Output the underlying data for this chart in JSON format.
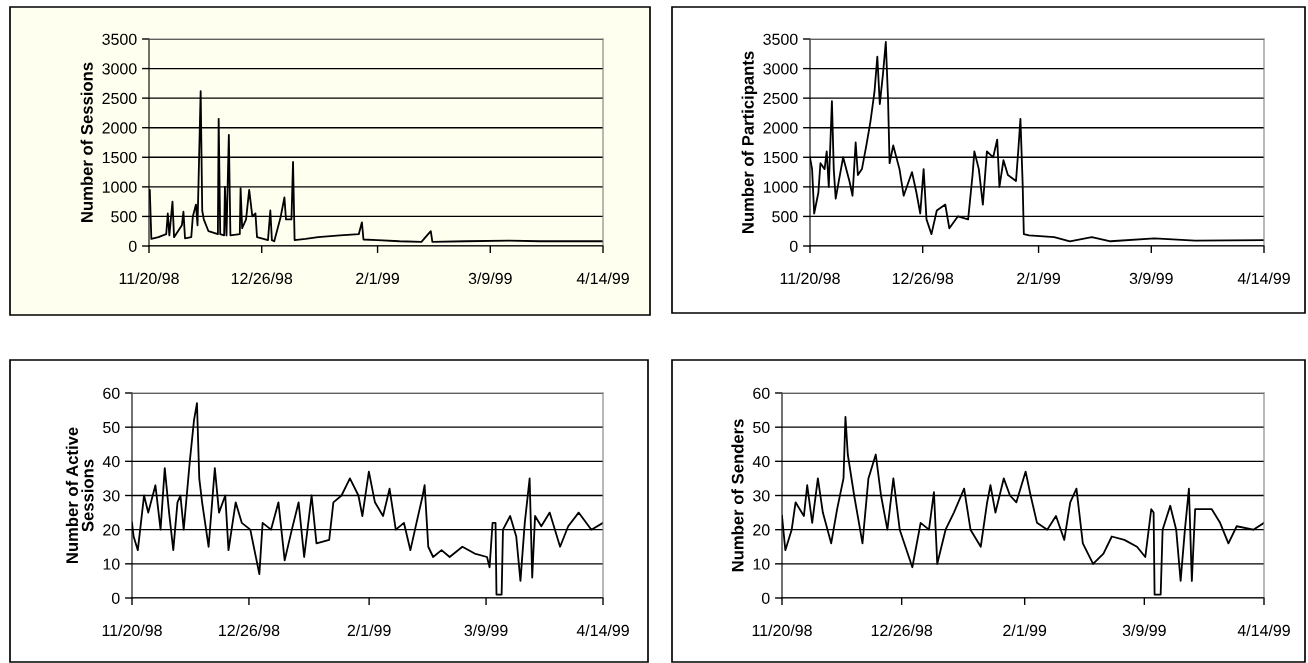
{
  "chart_data": [
    {
      "type": "line",
      "ylabel": "Number of Sessions",
      "grid": "y",
      "marker": "none",
      "line_style": "solid",
      "xlim": [
        "1998-11-20",
        "1999-04-14"
      ],
      "xticks": [
        {
          "value": "1998-11-20",
          "label": "11/20/98"
        },
        {
          "value": "1998-12-26",
          "label": "12/26/98"
        },
        {
          "value": "1999-02-01",
          "label": "2/1/99"
        },
        {
          "value": "1999-03-09",
          "label": "3/9/99"
        },
        {
          "value": "1999-04-14",
          "label": "4/14/99"
        }
      ],
      "ylim": [
        0,
        3500
      ],
      "yticks": [
        0,
        500,
        1000,
        1500,
        2000,
        2500,
        3000,
        3500
      ],
      "series": [
        {
          "color": "#000000",
          "x": [
            "1998-11-20T00:00",
            "1998-11-20T06:00",
            "1998-11-20T18:00",
            "1998-11-23",
            "1998-11-25T12:00",
            "1998-11-26",
            "1998-11-26T12:00",
            "1998-11-27T12:00",
            "1998-11-28",
            "1998-11-30T12:00",
            "1998-12-01",
            "1998-12-01T12:00",
            "1998-12-03T12:00",
            "1998-12-04",
            "1998-12-05",
            "1998-12-05T12:00",
            "1998-12-06T12:00",
            "1998-12-07",
            "1998-12-07T12:00",
            "1998-12-09",
            "1998-12-12",
            "1998-12-12T06:00",
            "1998-12-12T18:00",
            "1998-12-14",
            "1998-12-14T06:00",
            "1998-12-14T18:00",
            "1998-12-15T12:00",
            "1998-12-16",
            "1998-12-19",
            "1998-12-19T06:00",
            "1998-12-19T18:00",
            "1998-12-21",
            "1998-12-22",
            "1998-12-23",
            "1998-12-24",
            "1998-12-24T12:00",
            "1998-12-28",
            "1998-12-28T18:00",
            "1998-12-29T06:00",
            "1998-12-30",
            "1999-01-01",
            "1999-01-02T06:00",
            "1999-01-02T18:00",
            "1999-01-04T12:00",
            "1999-01-05",
            "1999-01-05T12:00",
            "1999-01-09",
            "1999-01-13",
            "1999-01-20",
            "1999-01-26",
            "1999-01-27",
            "1999-01-27T12:00",
            "1999-02-01",
            "1999-02-08",
            "1999-02-15",
            "1999-02-18",
            "1999-02-18T12:00",
            "1999-03-01",
            "1999-03-15",
            "1999-03-25",
            "1999-04-05",
            "1999-04-14"
          ],
          "values": [
            850,
            950,
            120,
            150,
            200,
            550,
            180,
            750,
            150,
            350,
            580,
            130,
            150,
            500,
            700,
            350,
            2620,
            600,
            450,
            250,
            200,
            2150,
            200,
            180,
            1000,
            180,
            1880,
            180,
            200,
            980,
            300,
            450,
            950,
            500,
            550,
            150,
            100,
            600,
            100,
            80,
            480,
            820,
            450,
            450,
            1420,
            100,
            120,
            150,
            180,
            200,
            400,
            110,
            100,
            80,
            70,
            250,
            70,
            80,
            90,
            80,
            80,
            80
          ]
        }
      ]
    },
    {
      "type": "line",
      "ylabel": "Number of Participants",
      "grid": "y",
      "marker": "none",
      "line_style": "solid",
      "xlim": [
        "1998-11-20",
        "1999-04-14"
      ],
      "xticks": [
        {
          "value": "1998-11-20",
          "label": "11/20/98"
        },
        {
          "value": "1998-12-26",
          "label": "12/26/98"
        },
        {
          "value": "1999-02-01",
          "label": "2/1/99"
        },
        {
          "value": "1999-03-09",
          "label": "3/9/99"
        },
        {
          "value": "1999-04-14",
          "label": "4/14/99"
        }
      ],
      "ylim": [
        0,
        3500
      ],
      "yticks": [
        0,
        500,
        1000,
        1500,
        2000,
        2500,
        3000,
        3500
      ],
      "series": [
        {
          "color": "#000000",
          "x": [
            "1998-11-20T00:00",
            "1998-11-20T16:00",
            "1998-11-21T08:00",
            "1998-11-22T16:00",
            "1998-11-23T08:00",
            "1998-11-24T16:00",
            "1998-11-25T08:00",
            "1998-11-26T00:00",
            "1998-11-27T00:00",
            "1998-11-27T14:00",
            "1998-11-28T05:00",
            "1998-11-29T05:00",
            "1998-11-30T14:00",
            "1998-12-02T14:00",
            "1998-12-03T14:00",
            "1998-12-04T14:00",
            "1998-12-05T07:00",
            "1998-12-06T14:00",
            "1998-12-08T00:00",
            "1998-12-09T07:00",
            "1998-12-10T14:00",
            "1998-12-11T12:00",
            "1998-12-12T07:00",
            "1998-12-13T07:00",
            "1998-12-14T05:00",
            "1998-12-14T22:00",
            "1998-12-15T10:00",
            "1998-12-16T14:00",
            "1998-12-18T14:00",
            "1998-12-19T22:00",
            "1998-12-22T14:00",
            "1998-12-24T00:00",
            "1998-12-25T05:00",
            "1998-12-26T07:00",
            "1998-12-27T05:00",
            "1998-12-28T19:00",
            "1998-12-30T12:00",
            "1999-01-02T05:00",
            "1999-01-03T12:00",
            "1999-01-06T05:00",
            "1999-01-09T12:00",
            "1999-01-10T22:00",
            "1999-01-11T12:00",
            "1999-01-12T22:00",
            "1999-01-14T05:00",
            "1999-01-15T12:00",
            "1999-01-17T12:00",
            "1999-01-18T19:00",
            "1999-01-19T12:00",
            "1999-01-20T19:00",
            "1999-01-22T05:00",
            "1999-01-24T19:00",
            "1999-01-25T12:00",
            "1999-01-26T05:00",
            "1999-01-26T22:00",
            "1999-01-27T07:00",
            "1999-01-29T00:00",
            "1999-02-06T00:00",
            "1999-02-11T00:00",
            "1999-02-18T00:00",
            "1999-02-24T00:00",
            "1999-03-10T00:00",
            "1999-03-23T00:00",
            "1999-04-14T00:00"
          ],
          "values": [
            1500,
            1300,
            550,
            900,
            1400,
            1300,
            1600,
            1000,
            2450,
            1300,
            800,
            1100,
            1500,
            1100,
            850,
            1750,
            1200,
            1300,
            1700,
            2100,
            2600,
            3200,
            2400,
            2900,
            3450,
            2500,
            1400,
            1700,
            1300,
            850,
            1250,
            900,
            550,
            1300,
            450,
            200,
            600,
            700,
            300,
            500,
            450,
            1200,
            1600,
            1300,
            700,
            1600,
            1500,
            1800,
            1000,
            1450,
            1200,
            1100,
            1600,
            2150,
            1050,
            200,
            180,
            150,
            80,
            150,
            80,
            130,
            90,
            100
          ]
        }
      ]
    },
    {
      "type": "line",
      "ylabel": "Number of Active\nSessions",
      "grid": "y",
      "marker": "none",
      "line_style": "solid",
      "xlim": [
        "1998-11-20",
        "1999-04-14"
      ],
      "xticks": [
        {
          "value": "1998-11-20",
          "label": "11/20/98"
        },
        {
          "value": "1998-12-26",
          "label": "12/26/98"
        },
        {
          "value": "1999-02-01",
          "label": "2/1/99"
        },
        {
          "value": "1999-03-09",
          "label": "3/9/99"
        },
        {
          "value": "1999-04-14",
          "label": "4/14/99"
        }
      ],
      "ylim": [
        0,
        60
      ],
      "yticks": [
        0,
        10,
        20,
        30,
        40,
        50,
        60
      ],
      "series": [
        {
          "color": "#000000",
          "x": [
            "1998-11-20T00:00",
            "1998-11-20T12:00",
            "1998-11-21T19:00",
            "1998-11-23T17:00",
            "1998-11-25T00:00",
            "1998-11-27T05:00",
            "1998-11-28T19:00",
            "1998-11-30T02:00",
            "1998-12-01T10:00",
            "1998-12-02T17:00",
            "1998-12-04T00:00",
            "1998-12-04T22:00",
            "1998-12-05T22:00",
            "1998-12-07T19:00",
            "1998-12-09T02:00",
            "1998-12-10T00:00",
            "1998-12-10T17:00",
            "1998-12-11T14:00",
            "1998-12-13T14:00",
            "1998-12-15T12:00",
            "1998-12-16T19:00",
            "1998-12-18T17:00",
            "1998-12-19T17:00",
            "1998-12-21T22:00",
            "1998-12-23T19:00",
            "1998-12-26T10:00",
            "1998-12-29T05:00",
            "1998-12-30T05:00",
            "1999-01-01T19:00",
            "1999-01-04T02:00",
            "1999-01-06T00:00",
            "1999-01-08T05:00",
            "1999-01-10T07:00",
            "1999-01-12T00:00",
            "1999-01-14T07:00",
            "1999-01-15T19:00",
            "1999-01-19T17:00",
            "1999-01-21T00:00",
            "1999-01-23T12:00",
            "1999-01-26T02:00",
            "1999-01-28T17:00",
            "1999-01-29T22:00",
            "1999-01-31T22:00",
            "1999-02-02T19:00",
            "1999-02-05T07:00",
            "1999-02-07T07:00",
            "1999-02-09T05:00",
            "1999-02-11T17:00",
            "1999-02-13T17:00",
            "1999-02-15T14:00",
            "1999-02-17T12:00",
            "1999-02-18T02:00",
            "1999-02-19T05:00",
            "1999-02-20T17:00",
            "1999-02-23T07:00",
            "1999-02-25T19:00",
            "1999-03-01T17:00",
            "1999-03-05T12:00",
            "1999-03-09T07:00",
            "1999-03-10T02:00",
            "1999-03-11T00:00",
            "1999-03-11T22:00",
            "1999-03-12T05:00",
            "1999-03-13T19:00",
            "1999-03-14T05:00",
            "1999-03-16T10:00",
            "1999-03-18T07:00",
            "1999-03-19T14:00",
            "1999-03-20T22:00",
            "1999-03-22T10:00",
            "1999-03-23T05:00",
            "1999-03-24T02:00",
            "1999-03-26T00:00",
            "1999-03-28T14:00",
            "1999-03-31T19:00",
            "1999-04-03T07:00",
            "1999-04-06T12:00",
            "1999-04-10T10:00",
            "1999-04-14T00:00"
          ],
          "values": [
            22,
            18,
            14,
            30,
            25,
            33,
            20,
            38,
            25,
            14,
            28,
            30,
            20,
            40,
            52,
            57,
            35,
            28,
            15,
            38,
            25,
            30,
            14,
            28,
            22,
            20,
            7,
            22,
            20,
            28,
            11,
            20,
            28,
            12,
            30,
            16,
            17,
            28,
            30,
            35,
            30,
            24,
            37,
            28,
            24,
            32,
            20,
            22,
            14,
            22,
            30,
            33,
            15,
            12,
            14,
            12,
            15,
            13,
            12,
            9,
            22,
            22,
            1,
            1,
            20,
            24,
            18,
            5,
            22,
            35,
            6,
            24,
            21,
            25,
            15,
            21,
            25,
            20,
            22
          ]
        }
      ]
    },
    {
      "type": "line",
      "ylabel": "Number of Senders",
      "grid": "y",
      "marker": "none",
      "line_style": "solid",
      "xlim": [
        "1998-11-20",
        "1999-04-14"
      ],
      "xticks": [
        {
          "value": "1998-11-20",
          "label": "11/20/98"
        },
        {
          "value": "1998-12-26",
          "label": "12/26/98"
        },
        {
          "value": "1999-02-01",
          "label": "2/1/99"
        },
        {
          "value": "1999-03-09",
          "label": "3/9/99"
        },
        {
          "value": "1999-04-14",
          "label": "4/14/99"
        }
      ],
      "ylim": [
        0,
        60
      ],
      "yticks": [
        0,
        10,
        20,
        30,
        40,
        50,
        60
      ],
      "series": [
        {
          "color": "#000000",
          "x": [
            "1998-11-20T00:00",
            "1998-11-21T00:00",
            "1998-11-22T22:00",
            "1998-11-24T02:00",
            "1998-11-26T14:00",
            "1998-11-27T14:00",
            "1998-11-29T02:00",
            "1998-11-30T19:00",
            "1998-12-02T07:00",
            "1998-12-04T19:00",
            "1998-12-06T14:00",
            "1998-12-08T12:00",
            "1998-12-09T02:00",
            "1998-12-09T19:00",
            "1998-12-11T17:00",
            "1998-12-13T12:00",
            "1998-12-14T05:00",
            "1998-12-16T00:00",
            "1998-12-18T05:00",
            "1998-12-19T19:00",
            "1998-12-21T17:00",
            "1998-12-23T12:00",
            "1998-12-25T10:00",
            "1998-12-29T05:00",
            "1998-12-31T17:00",
            "1999-01-03T05:00",
            "1999-01-04T17:00",
            "1999-01-05T17:00",
            "1999-01-08T05:00",
            "1999-01-10T17:00",
            "1999-01-13T19:00",
            "1999-01-15T17:00",
            "1999-01-18T19:00",
            "1999-01-20T17:00",
            "1999-01-21T17:00",
            "1999-01-23T05:00",
            "1999-01-25T17:00",
            "1999-01-27T14:00",
            "1999-01-29T12:00",
            "1999-02-01T07:00",
            "1999-02-02T19:00",
            "1999-02-04T17:00",
            "1999-02-07T19:00",
            "1999-02-10T10:00",
            "1999-02-12T22:00",
            "1999-02-14T17:00",
            "1999-02-16T14:00",
            "1999-02-18T12:00",
            "1999-02-21T14:00",
            "1999-02-24T17:00",
            "1999-02-27T05:00",
            "1999-03-03T00:00",
            "1999-03-06T19:00",
            "1999-03-09T07:00",
            "1999-03-11T02:00",
            "1999-03-11T19:00",
            "1999-03-12T02:00",
            "1999-03-13T22:00",
            "1999-03-14T12:00",
            "1999-03-16T19:00",
            "1999-03-18T14:00",
            "1999-03-19T22:00",
            "1999-03-21T05:00",
            "1999-03-22T10:00",
            "1999-03-23T07:00",
            "1999-03-24T07:00",
            "1999-03-29T07:00",
            "1999-03-31T19:00",
            "1999-04-03T07:00",
            "1999-04-05T19:00",
            "1999-04-10T19:00",
            "1999-04-14T00:00"
          ],
          "values": [
            24,
            14,
            20,
            28,
            24,
            33,
            22,
            35,
            25,
            16,
            26,
            35,
            53,
            42,
            30,
            20,
            16,
            35,
            42,
            30,
            20,
            35,
            20,
            9,
            22,
            20,
            31,
            10,
            20,
            25,
            32,
            20,
            15,
            28,
            33,
            25,
            35,
            30,
            28,
            37,
            30,
            22,
            20,
            24,
            17,
            28,
            32,
            16,
            10,
            13,
            18,
            17,
            15,
            12,
            26,
            25,
            1,
            1,
            20,
            27,
            20,
            5,
            20,
            32,
            5,
            26,
            26,
            22,
            16,
            21,
            20,
            22
          ]
        }
      ]
    }
  ]
}
